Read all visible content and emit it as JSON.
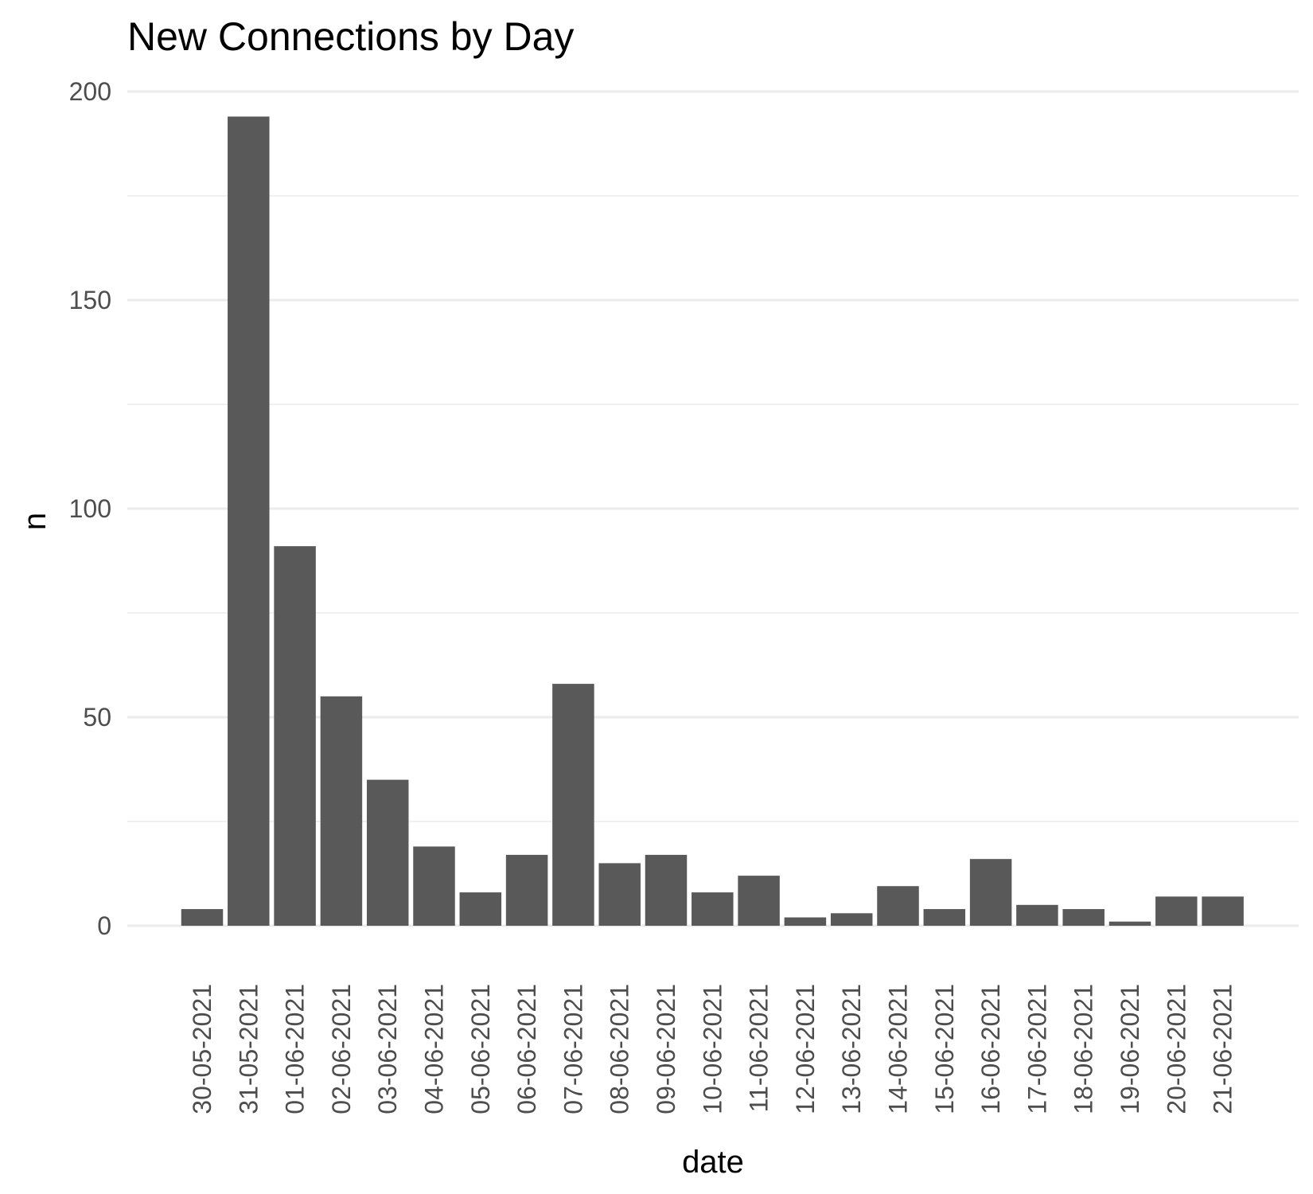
{
  "chart_data": {
    "type": "bar",
    "title": "New Connections by Day",
    "xlabel": "date",
    "ylabel": "n",
    "ylim": [
      0,
      200
    ],
    "yticks": [
      0,
      50,
      100,
      150,
      200
    ],
    "grid": true,
    "legend": "none",
    "colors": {
      "bar": "#595959",
      "grid": "#ebebeb",
      "tick_text": "#4d4d4d"
    },
    "categories": [
      "30-05-2021",
      "31-05-2021",
      "01-06-2021",
      "02-06-2021",
      "03-06-2021",
      "04-06-2021",
      "05-06-2021",
      "06-06-2021",
      "07-06-2021",
      "08-06-2021",
      "09-06-2021",
      "10-06-2021",
      "11-06-2021",
      "12-06-2021",
      "13-06-2021",
      "14-06-2021",
      "15-06-2021",
      "16-06-2021",
      "17-06-2021",
      "18-06-2021",
      "19-06-2021",
      "20-06-2021",
      "21-06-2021"
    ],
    "values": [
      4,
      194,
      91,
      55,
      35,
      19,
      8,
      17,
      58,
      15,
      17,
      8,
      12,
      2,
      3,
      9.5,
      4,
      16,
      5,
      4,
      1,
      7,
      7
    ]
  }
}
